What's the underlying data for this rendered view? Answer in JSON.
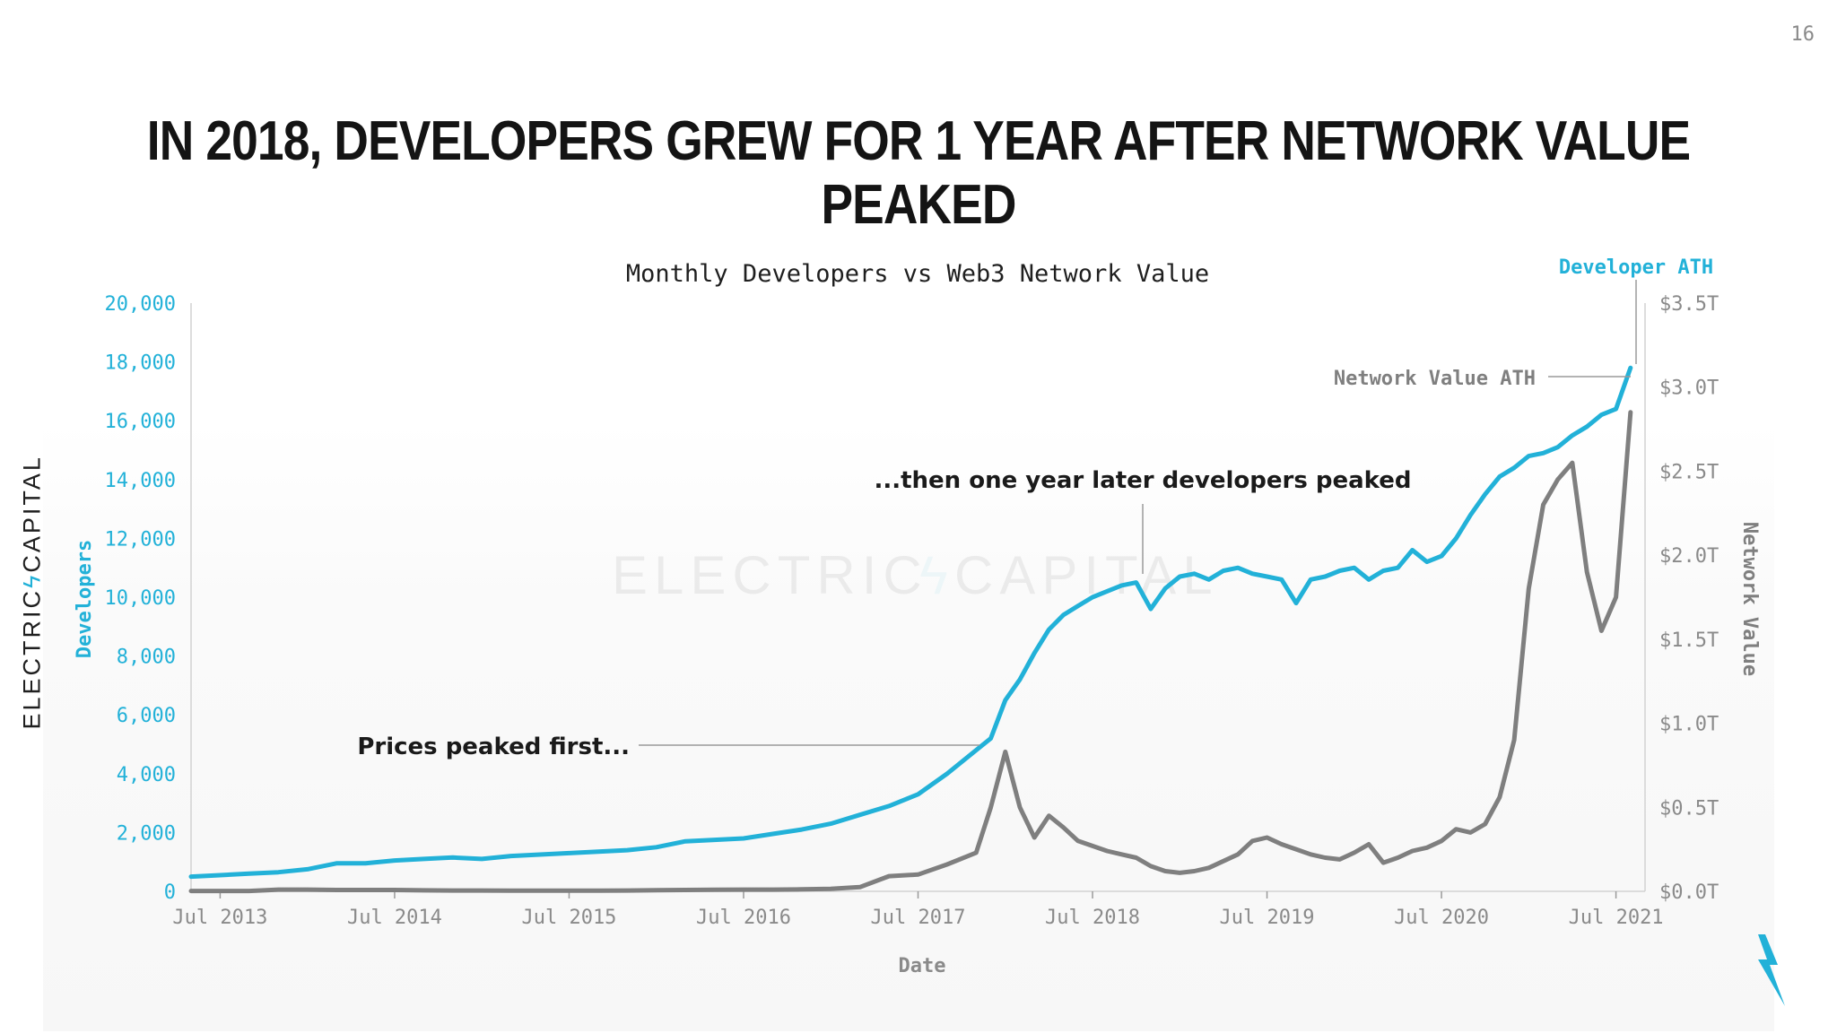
{
  "page": {
    "number": "16",
    "title": "IN 2018, DEVELOPERS GREW FOR 1 YEAR AFTER NETWORK VALUE PEAKED",
    "brand_left": "ELECTRIC",
    "brand_right": "CAPITAL",
    "watermark_left": "ELECTRIC",
    "watermark_right": "CAPITAL"
  },
  "colors": {
    "developers": "#22b1d8",
    "network_value": "#7f7f7f",
    "title": "#141414",
    "annotation": "#1a1a1a",
    "brand_accent": "#22b1d8"
  },
  "icons": [
    "lightning-bolt-logo-icon"
  ],
  "chart_data": {
    "type": "line",
    "title": "Monthly Developers vs Web3 Network Value",
    "xlabel": "Date",
    "ylabel_left": "Developers",
    "ylabel_right": "Network Value",
    "xlim": [
      "2013-05-01",
      "2021-09-01"
    ],
    "ylim_left": [
      0,
      20000
    ],
    "ylim_right": [
      0,
      3.5
    ],
    "right_axis_unit": "trillion USD",
    "grid": false,
    "x_ticks": [
      "Jul 2013",
      "Jul 2014",
      "Jul 2015",
      "Jul 2016",
      "Jul 2017",
      "Jul 2018",
      "Jul 2019",
      "Jul 2020",
      "Jul 2021"
    ],
    "y_ticks_left": [
      "0",
      "2,000",
      "4,000",
      "6,000",
      "8,000",
      "10,000",
      "12,000",
      "14,000",
      "16,000",
      "18,000",
      "20,000"
    ],
    "y_ticks_right": [
      "$0.0T",
      "$0.5T",
      "$1.0T",
      "$1.5T",
      "$2.0T",
      "$2.5T",
      "$3.0T",
      "$3.5T"
    ],
    "series": [
      {
        "name": "Developers",
        "axis": "left",
        "x": [
          "2013-05",
          "2013-07",
          "2013-09",
          "2013-11",
          "2014-01",
          "2014-03",
          "2014-05",
          "2014-07",
          "2014-09",
          "2014-11",
          "2015-01",
          "2015-03",
          "2015-05",
          "2015-07",
          "2015-09",
          "2015-11",
          "2016-01",
          "2016-03",
          "2016-05",
          "2016-07",
          "2016-09",
          "2016-11",
          "2017-01",
          "2017-03",
          "2017-05",
          "2017-07",
          "2017-09",
          "2017-11",
          "2017-12",
          "2018-01",
          "2018-02",
          "2018-03",
          "2018-04",
          "2018-05",
          "2018-06",
          "2018-07",
          "2018-08",
          "2018-09",
          "2018-10",
          "2018-11",
          "2018-12",
          "2019-01",
          "2019-02",
          "2019-03",
          "2019-04",
          "2019-05",
          "2019-06",
          "2019-07",
          "2019-08",
          "2019-09",
          "2019-10",
          "2019-11",
          "2019-12",
          "2020-01",
          "2020-02",
          "2020-03",
          "2020-04",
          "2020-05",
          "2020-06",
          "2020-07",
          "2020-08",
          "2020-09",
          "2020-10",
          "2020-11",
          "2020-12",
          "2021-01",
          "2021-02",
          "2021-03",
          "2021-04",
          "2021-05",
          "2021-06",
          "2021-07",
          "2021-08"
        ],
        "values": [
          500,
          550,
          600,
          650,
          750,
          950,
          950,
          1050,
          1100,
          1150,
          1100,
          1200,
          1250,
          1300,
          1350,
          1400,
          1500,
          1700,
          1750,
          1800,
          1950,
          2100,
          2300,
          2600,
          2900,
          3300,
          4000,
          4800,
          5200,
          6500,
          7200,
          8100,
          8900,
          9400,
          9700,
          10000,
          10200,
          10400,
          10500,
          9600,
          10300,
          10700,
          10800,
          10600,
          10900,
          11000,
          10800,
          10700,
          10600,
          9800,
          10600,
          10700,
          10900,
          11000,
          10600,
          10900,
          11000,
          11600,
          11200,
          11400,
          12000,
          12800,
          13500,
          14100,
          14400,
          14800,
          14900,
          15100,
          15500,
          15800,
          16200,
          16400,
          17800
        ]
      },
      {
        "name": "Network Value",
        "axis": "right",
        "x": [
          "2013-05",
          "2013-07",
          "2013-09",
          "2013-11",
          "2014-01",
          "2014-03",
          "2014-05",
          "2014-07",
          "2014-09",
          "2014-11",
          "2015-01",
          "2015-03",
          "2015-05",
          "2015-07",
          "2015-09",
          "2015-11",
          "2016-01",
          "2016-03",
          "2016-05",
          "2016-07",
          "2016-09",
          "2016-11",
          "2017-01",
          "2017-03",
          "2017-05",
          "2017-07",
          "2017-09",
          "2017-11",
          "2017-12",
          "2018-01",
          "2018-02",
          "2018-03",
          "2018-04",
          "2018-05",
          "2018-06",
          "2018-07",
          "2018-08",
          "2018-09",
          "2018-10",
          "2018-11",
          "2018-12",
          "2019-01",
          "2019-02",
          "2019-03",
          "2019-04",
          "2019-05",
          "2019-06",
          "2019-07",
          "2019-08",
          "2019-09",
          "2019-10",
          "2019-11",
          "2019-12",
          "2020-01",
          "2020-02",
          "2020-03",
          "2020-04",
          "2020-05",
          "2020-06",
          "2020-07",
          "2020-08",
          "2020-09",
          "2020-10",
          "2020-11",
          "2020-12",
          "2021-01",
          "2021-02",
          "2021-03",
          "2021-04",
          "2021-05",
          "2021-06",
          "2021-07",
          "2021-08"
        ],
        "values": [
          0.002,
          0.002,
          0.002,
          0.01,
          0.01,
          0.008,
          0.008,
          0.008,
          0.006,
          0.005,
          0.005,
          0.004,
          0.004,
          0.004,
          0.004,
          0.005,
          0.007,
          0.008,
          0.009,
          0.01,
          0.01,
          0.012,
          0.015,
          0.025,
          0.09,
          0.1,
          0.16,
          0.23,
          0.5,
          0.83,
          0.5,
          0.32,
          0.45,
          0.38,
          0.3,
          0.27,
          0.24,
          0.22,
          0.2,
          0.15,
          0.12,
          0.11,
          0.12,
          0.14,
          0.18,
          0.22,
          0.3,
          0.32,
          0.28,
          0.25,
          0.22,
          0.2,
          0.19,
          0.23,
          0.28,
          0.17,
          0.2,
          0.24,
          0.26,
          0.3,
          0.37,
          0.35,
          0.4,
          0.56,
          0.9,
          1.8,
          2.3,
          2.45,
          2.55,
          1.9,
          1.55,
          1.75,
          2.85
        ]
      }
    ],
    "annotations": [
      {
        "text": "Prices peaked first...",
        "x": "2017-12"
      },
      {
        "text": "...then one year later developers peaked",
        "x": "2018-12"
      },
      {
        "text": "Network Value ATH",
        "x": "2021-08"
      },
      {
        "text": "Developer ATH",
        "x": "2021-08"
      }
    ]
  }
}
